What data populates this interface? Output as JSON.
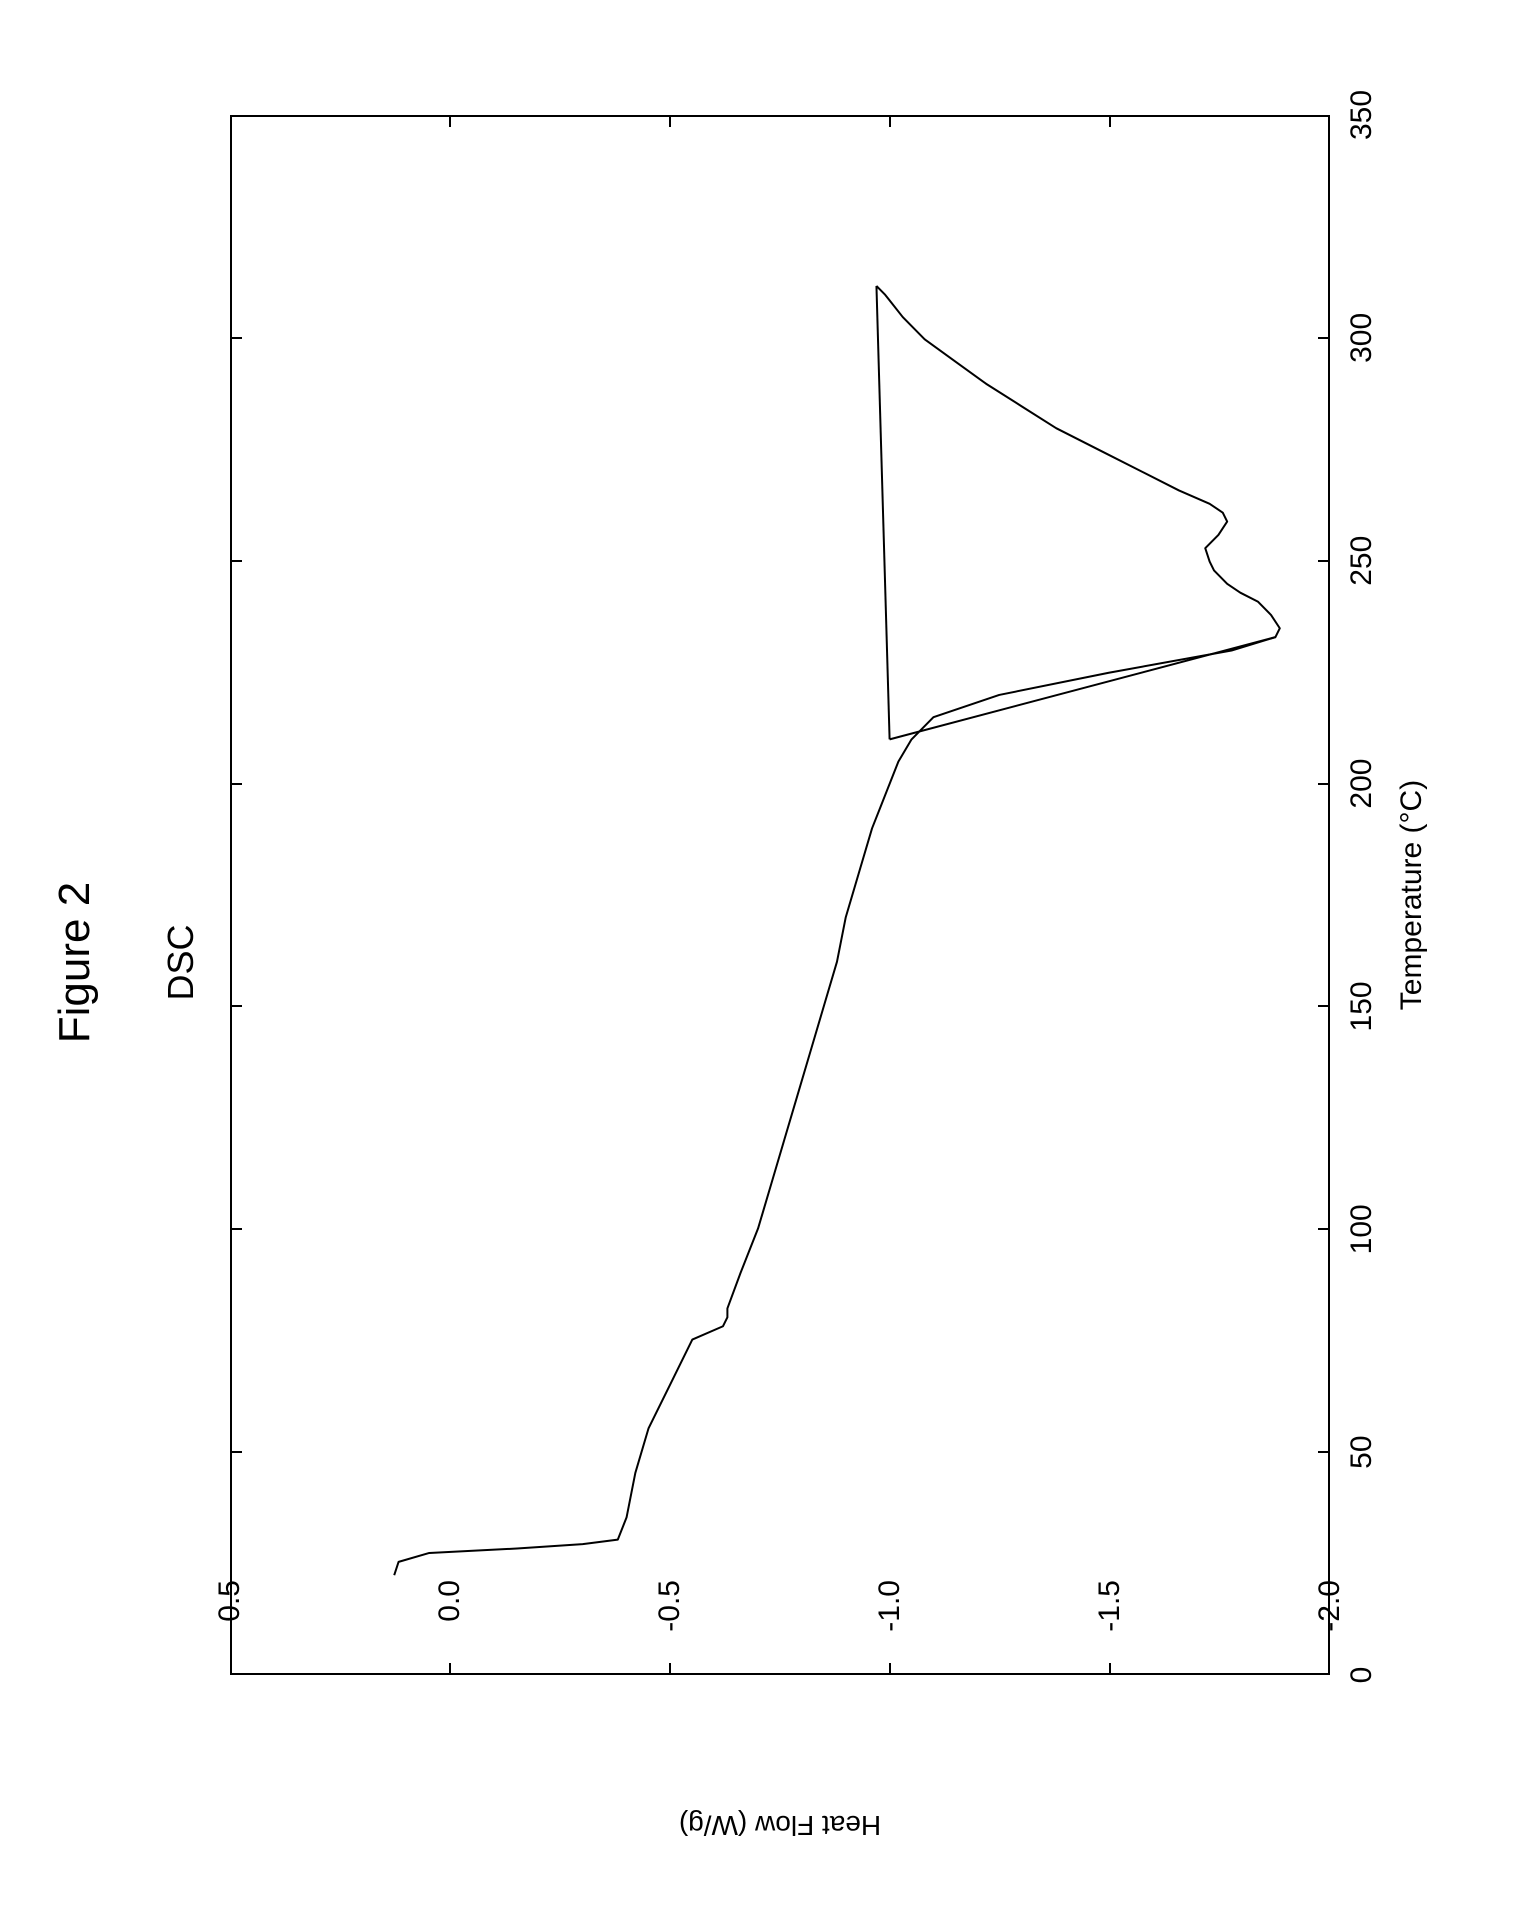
{
  "figure": {
    "title": "Figure 2",
    "chart_title": "DSC"
  },
  "chart": {
    "type": "line",
    "x_axis": {
      "label": "Temperature (°C)",
      "min": 0,
      "max": 350,
      "ticks": [
        0,
        50,
        100,
        150,
        200,
        250,
        300,
        350
      ],
      "label_fontsize": 30,
      "tick_fontsize": 30
    },
    "y_axis": {
      "label": "Heat Flow (W/g)",
      "min": -2.0,
      "max": 0.5,
      "ticks": [
        0.5,
        0.0,
        -0.5,
        -1.0,
        -1.5,
        -2.0
      ],
      "tick_labels": [
        "0.5",
        "0.0",
        "-0.5",
        "-1.0",
        "-1.5",
        "-2.0"
      ],
      "label_fontsize": 28,
      "tick_fontsize": 30
    },
    "main_curve": {
      "color": "#000000",
      "width": 2,
      "data": [
        [
          22,
          0.13
        ],
        [
          25,
          0.12
        ],
        [
          27,
          0.05
        ],
        [
          28,
          -0.15
        ],
        [
          29,
          -0.3
        ],
        [
          30,
          -0.38
        ],
        [
          35,
          -0.4
        ],
        [
          45,
          -0.42
        ],
        [
          55,
          -0.45
        ],
        [
          65,
          -0.5
        ],
        [
          75,
          -0.55
        ],
        [
          78,
          -0.62
        ],
        [
          80,
          -0.63
        ],
        [
          82,
          -0.63
        ],
        [
          90,
          -0.66
        ],
        [
          100,
          -0.7
        ],
        [
          110,
          -0.73
        ],
        [
          120,
          -0.76
        ],
        [
          130,
          -0.79
        ],
        [
          140,
          -0.82
        ],
        [
          150,
          -0.85
        ],
        [
          160,
          -0.88
        ],
        [
          170,
          -0.9
        ],
        [
          180,
          -0.93
        ],
        [
          190,
          -0.96
        ],
        [
          195,
          -0.98
        ],
        [
          200,
          -1.0
        ],
        [
          205,
          -1.02
        ],
        [
          210,
          -1.05
        ],
        [
          215,
          -1.1
        ],
        [
          220,
          -1.25
        ],
        [
          225,
          -1.5
        ],
        [
          230,
          -1.78
        ],
        [
          233,
          -1.88
        ],
        [
          235,
          -1.89
        ],
        [
          238,
          -1.87
        ],
        [
          241,
          -1.84
        ],
        [
          243,
          -1.8
        ],
        [
          245,
          -1.77
        ],
        [
          248,
          -1.74
        ],
        [
          250,
          -1.73
        ],
        [
          253,
          -1.72
        ],
        [
          256,
          -1.75
        ],
        [
          259,
          -1.77
        ],
        [
          261,
          -1.76
        ],
        [
          263,
          -1.73
        ],
        [
          266,
          -1.66
        ],
        [
          270,
          -1.58
        ],
        [
          275,
          -1.48
        ],
        [
          280,
          -1.38
        ],
        [
          285,
          -1.3
        ],
        [
          290,
          -1.22
        ],
        [
          295,
          -1.15
        ],
        [
          300,
          -1.08
        ],
        [
          305,
          -1.03
        ],
        [
          310,
          -0.99
        ],
        [
          312,
          -0.97
        ]
      ]
    },
    "baseline_segment": {
      "color": "#000000",
      "width": 2,
      "data": [
        [
          210,
          -1.0
        ],
        [
          312,
          -0.97
        ]
      ]
    },
    "onset_segment": {
      "color": "#000000",
      "width": 2,
      "data": [
        [
          210,
          -1.0
        ],
        [
          233,
          -1.88
        ]
      ]
    },
    "background_color": "#ffffff",
    "border_color": "#000000",
    "title_fontsize": 44,
    "chart_title_fontsize": 36
  }
}
